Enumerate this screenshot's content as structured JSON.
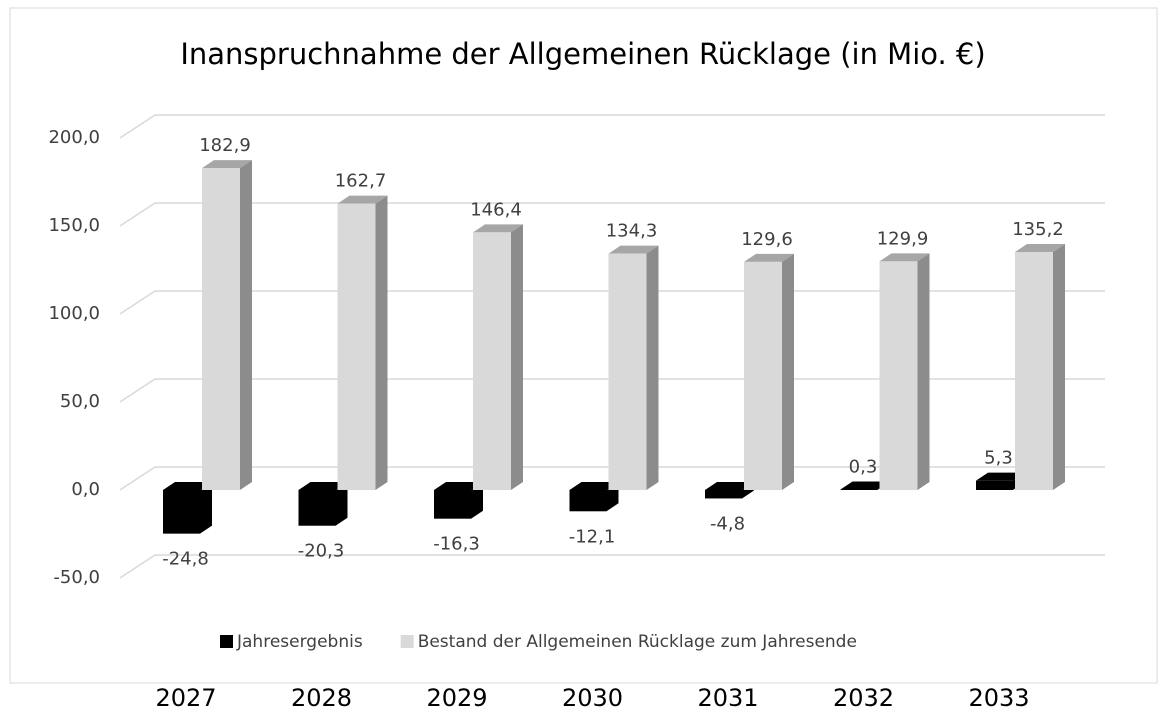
{
  "chart_data": {
    "type": "bar3d",
    "title": "Inanspruchnahme der Allgemeinen Rücklage (in Mio. €)",
    "categories": [
      "2027",
      "2028",
      "2029",
      "2030",
      "2031",
      "2032",
      "2033"
    ],
    "series": [
      {
        "name": "Jahresergebnis",
        "color": "#000000",
        "values": [
          -24.8,
          -20.3,
          -16.3,
          -12.1,
          -4.8,
          0.3,
          5.3
        ],
        "value_labels": [
          "-24,8",
          "-20,3",
          "-16,3",
          "-12,1",
          "-4,8",
          "0,3",
          "5,3"
        ]
      },
      {
        "name": "Bestand der Allgemeinen Rücklage zum Jahresende",
        "color": "#d9d9d9",
        "values": [
          182.9,
          162.7,
          146.4,
          134.3,
          129.6,
          129.9,
          135.2
        ],
        "value_labels": [
          "182,9",
          "162,7",
          "146,4",
          "134,3",
          "129,6",
          "129,9",
          "135,2"
        ]
      }
    ],
    "ylim": [
      -50,
      200
    ],
    "yticks": [
      {
        "value": -50,
        "label": "-50,0"
      },
      {
        "value": 0,
        "label": "0,0"
      },
      {
        "value": 50,
        "label": "50,0"
      },
      {
        "value": 100,
        "label": "100,0"
      },
      {
        "value": 150,
        "label": "150,0"
      },
      {
        "value": 200,
        "label": "200,0"
      }
    ],
    "grid": true,
    "legend": "bottom"
  }
}
